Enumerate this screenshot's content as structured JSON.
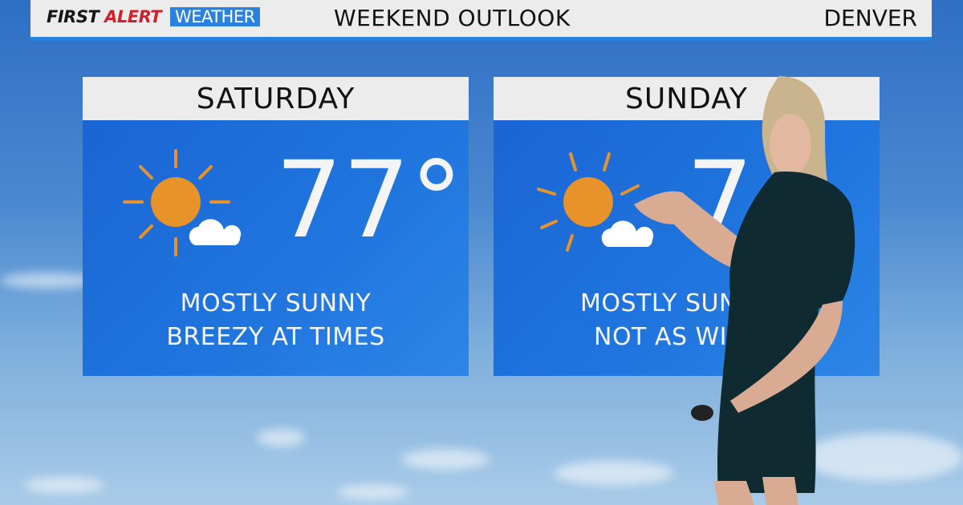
{
  "header": {
    "brand_first": "FIRST",
    "brand_alert": "ALERT",
    "brand_weather": "WEATHER",
    "title": "WEEKEND OUTLOOK",
    "city": "DENVER"
  },
  "forecast": [
    {
      "day": "SATURDAY",
      "temp": "77°",
      "icon": "sun-with-cloud-icon",
      "line1": "MOSTLY SUNNY",
      "line2": "BREEZY AT TIMES"
    },
    {
      "day": "SUNDAY",
      "temp": "7",
      "icon": "sun-with-cloud-icon",
      "line1": "MOSTLY SUN",
      "line2": "NOT AS WIN"
    }
  ],
  "colors": {
    "accent_blue": "#2a82de",
    "alert_red": "#d0202e",
    "sun_orange": "#e8922a",
    "panel_blue": "#1f6fdb"
  }
}
